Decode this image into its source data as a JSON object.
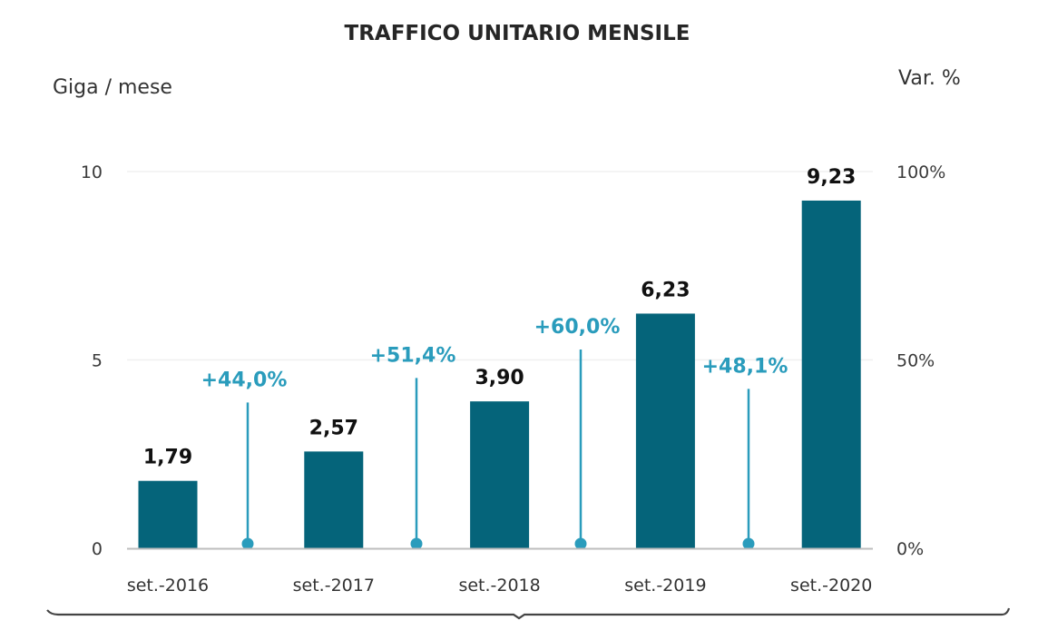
{
  "chart_data": {
    "type": "bar",
    "title": "TRAFFICO UNITARIO MENSILE",
    "ylabel": "Giga / mese",
    "y2label": "Var. %",
    "categories": [
      "set.-2016",
      "set.-2017",
      "set.-2018",
      "set.-2019",
      "set.-2020"
    ],
    "series": [
      {
        "name": "Traffico unitario mensile (Giga/mese)",
        "type": "bar",
        "values": [
          1.79,
          2.57,
          3.9,
          6.23,
          9.23
        ],
        "labels": [
          "1,79",
          "2,57",
          "3,90",
          "6,23",
          "9,23"
        ],
        "color": "#05647a"
      },
      {
        "name": "Var. %",
        "type": "lollipop",
        "between": [
          [
            "set.-2016",
            "set.-2017"
          ],
          [
            "set.-2017",
            "set.-2018"
          ],
          [
            "set.-2018",
            "set.-2019"
          ],
          [
            "set.-2019",
            "set.-2020"
          ]
        ],
        "values": [
          44.0,
          51.4,
          60.0,
          48.1
        ],
        "labels": [
          "+44,0%",
          "+51,4%",
          "+60,0%",
          "+48,1%"
        ],
        "color": "#2a9cbc"
      }
    ],
    "ylim": [
      0,
      10
    ],
    "y2lim": [
      0,
      100
    ],
    "yticks": [
      "0",
      "5",
      "10"
    ],
    "y2ticks": [
      "0%",
      "50%",
      "100%"
    ],
    "grid": true,
    "legend": "none"
  }
}
